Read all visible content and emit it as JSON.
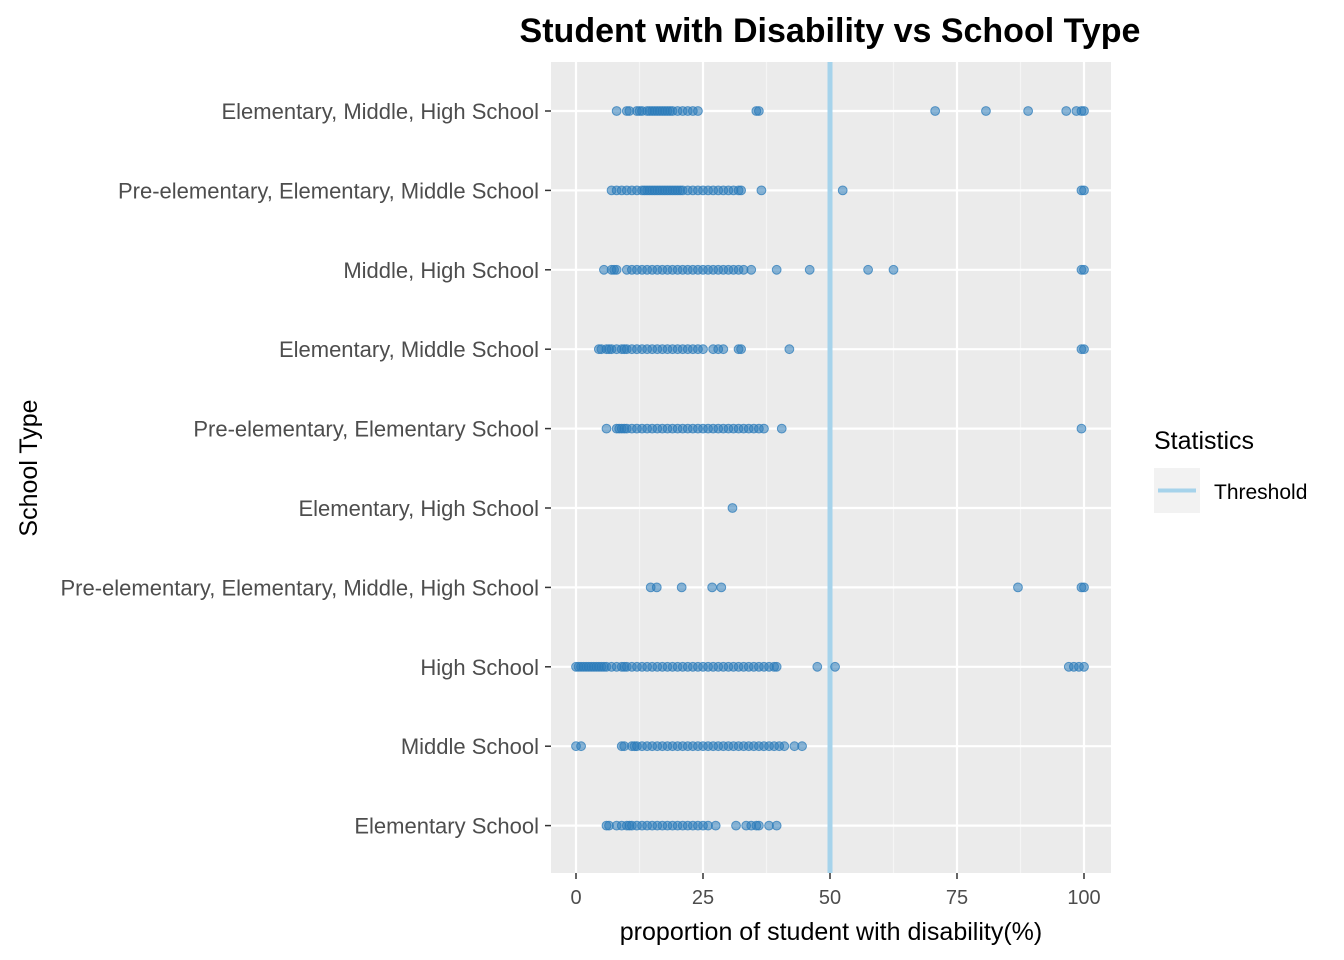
{
  "chart_data": {
    "type": "scatter",
    "title": "Student with Disability vs School Type",
    "xlabel": "proportion of student with disability(%)",
    "ylabel": "School Type",
    "xlim": [
      -5,
      105
    ],
    "x_ticks": [
      "0",
      "25",
      "50",
      "75",
      "100"
    ],
    "grid": true,
    "threshold": {
      "name": "Threshold",
      "value": 50,
      "color": "#a6d3eb"
    },
    "legend": {
      "title": "Statistics",
      "placement": "right"
    },
    "point_color": "#2b7bba",
    "categories": [
      "Elementary, Middle, High School",
      "Pre-elementary, Elementary, Middle School",
      "Middle, High School",
      "Elementary, Middle School",
      "Pre-elementary, Elementary School",
      "Elementary, High School",
      "Pre-elementary, Elementary, Middle, High School",
      "High School",
      "Middle School",
      "Elementary School"
    ],
    "series": [
      {
        "category": "Elementary, Middle, High School",
        "values": [
          8,
          10,
          10.5,
          12,
          12.5,
          13,
          14,
          14.5,
          15,
          15.5,
          16,
          16.5,
          17,
          17.5,
          18,
          18.5,
          19,
          20,
          21,
          22,
          23,
          24,
          35.5,
          36,
          70.7,
          80.7,
          89,
          96.5,
          98.5,
          99.5,
          100
        ]
      },
      {
        "category": "Pre-elementary, Elementary, Middle School",
        "values": [
          7,
          8,
          9,
          10,
          11,
          12,
          13,
          13.5,
          14,
          14.5,
          15,
          15.5,
          16,
          16.5,
          17,
          17.5,
          18,
          18.5,
          19,
          19.5,
          20,
          20.5,
          21,
          22,
          23,
          24,
          25,
          26,
          27,
          28,
          29,
          30,
          31,
          32,
          32.5,
          36.5,
          52.5,
          99.5,
          100
        ]
      },
      {
        "category": "Middle, High School",
        "values": [
          5.5,
          7,
          7.5,
          8,
          10,
          11,
          12,
          13,
          14,
          15,
          16,
          17,
          18,
          19,
          20,
          21,
          22,
          23,
          24,
          25,
          26,
          27,
          28,
          29,
          30,
          31,
          32,
          33,
          34.5,
          39.5,
          46,
          57.5,
          62.5,
          99.5,
          100
        ]
      },
      {
        "category": "Elementary, Middle School",
        "values": [
          4.5,
          5,
          6,
          6.5,
          7,
          8,
          9,
          9.5,
          10,
          11,
          12,
          13,
          14,
          15,
          16,
          17,
          18,
          19,
          20,
          21,
          22,
          23,
          24,
          25,
          27,
          28,
          29,
          32,
          32.5,
          42,
          99.5,
          100
        ]
      },
      {
        "category": "Pre-elementary, Elementary School",
        "values": [
          6,
          8,
          8.5,
          9,
          9.5,
          10,
          11,
          12,
          13,
          14,
          15,
          16,
          17,
          18,
          19,
          20,
          21,
          22,
          23,
          24,
          25,
          26,
          27,
          28,
          29,
          30,
          31,
          32,
          33,
          34,
          35,
          36,
          37,
          40.5,
          99.5
        ]
      },
      {
        "category": "Elementary, High School",
        "values": [
          30.8
        ]
      },
      {
        "category": "Pre-elementary, Elementary, Middle, High School",
        "values": [
          14.7,
          15.9,
          20.8,
          26.8,
          28.6,
          87,
          99.5,
          100
        ]
      },
      {
        "category": "High School",
        "values": [
          0,
          0.5,
          1,
          1.5,
          2,
          2.5,
          3,
          3.5,
          4,
          4.5,
          5,
          5.5,
          6,
          7,
          8,
          9,
          9.5,
          10,
          11,
          12,
          13,
          14,
          15,
          16,
          17,
          18,
          19,
          20,
          21,
          22,
          23,
          24,
          25,
          26,
          27,
          28,
          29,
          30,
          31,
          32,
          33,
          34,
          35,
          36,
          37,
          38,
          39,
          39.5,
          47.5,
          51,
          97,
          98,
          99,
          100
        ]
      },
      {
        "category": "Middle School",
        "values": [
          0,
          1,
          9,
          9.5,
          11,
          11.5,
          12,
          13,
          14,
          15,
          16,
          17,
          18,
          19,
          20,
          21,
          22,
          23,
          24,
          25,
          26,
          27,
          28,
          29,
          30,
          31,
          32,
          33,
          34,
          35,
          36,
          37,
          38,
          39,
          40,
          41,
          43,
          44.5
        ]
      },
      {
        "category": "Elementary School",
        "values": [
          6,
          6.5,
          8,
          9,
          10,
          10.5,
          11,
          12,
          13,
          14,
          15,
          16,
          17,
          18,
          19,
          20,
          21,
          22,
          23,
          24,
          25,
          26,
          27.5,
          31.5,
          33.5,
          34.5,
          35.5,
          36,
          38,
          39.5
        ]
      }
    ]
  }
}
